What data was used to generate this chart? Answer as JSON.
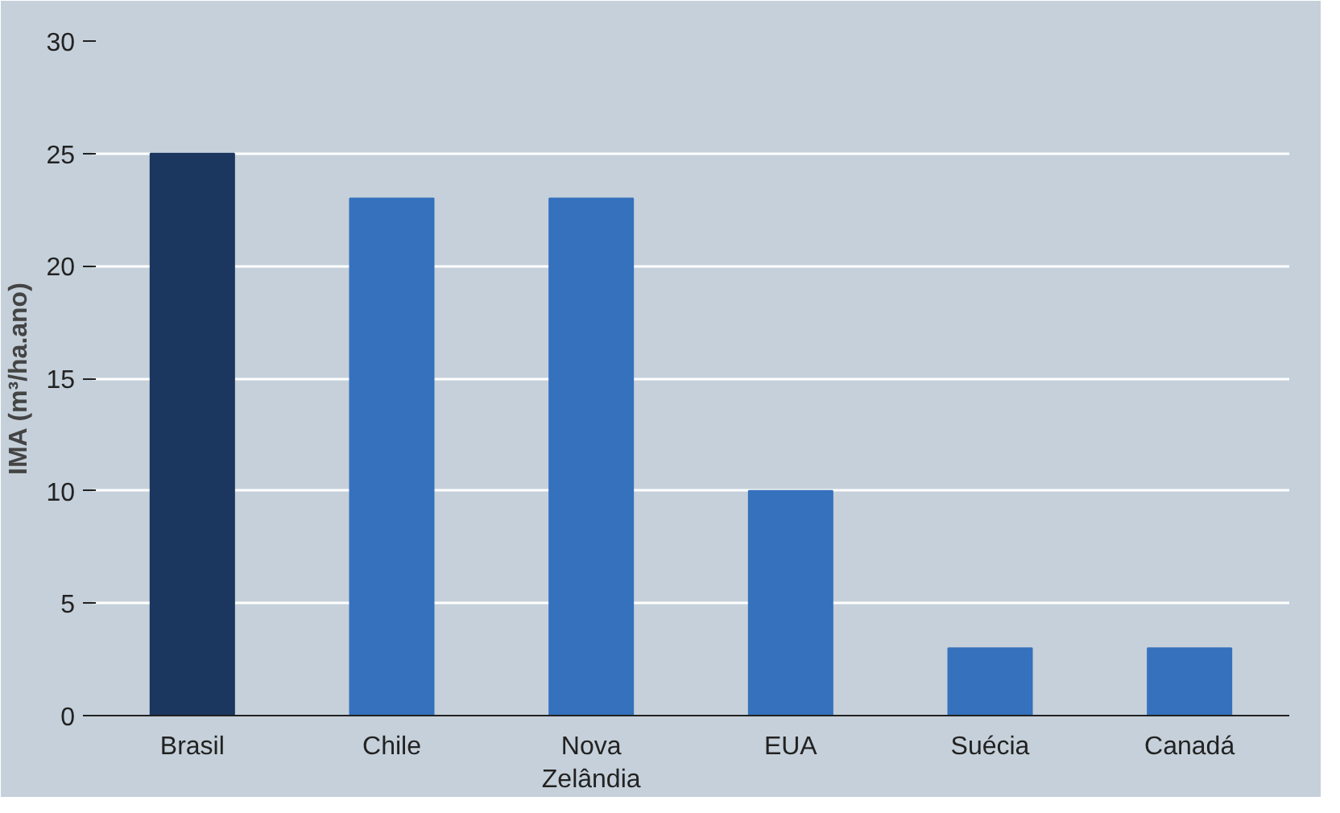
{
  "chart_data": {
    "type": "bar",
    "ylabel": "IMA (m³/ha.ano)",
    "categories": [
      "Brasil",
      "Chile",
      "Nova Zelândia",
      "EUA",
      "Suécia",
      "Canadá"
    ],
    "values": [
      25,
      23,
      23,
      10,
      3,
      3
    ],
    "colors": [
      "#1b365f",
      "#3571bd",
      "#3571bd",
      "#3571bd",
      "#3571bd",
      "#3571bd"
    ],
    "ylim": [
      0,
      30
    ],
    "yticks": [
      0,
      5,
      10,
      15,
      20,
      25,
      30
    ],
    "grid": "y"
  }
}
